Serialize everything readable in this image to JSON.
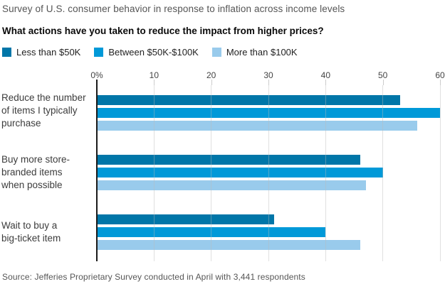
{
  "header": {
    "kicker": "Survey of U.S. consumer behavior in response to inflation across income levels",
    "title": "What actions have you taken to reduce the impact from higher prices?"
  },
  "footer": {
    "source": "Source: Jefferies Proprietary Survey conducted in April with 3,441 respondents"
  },
  "chart_data": {
    "type": "bar",
    "orientation": "horizontal",
    "title": "What actions have you taken to reduce the impact from higher prices?",
    "legend_position": "top",
    "grid": "vertical",
    "categories": [
      "Reduce the number of items I typically purchase",
      "Buy more store-branded items when possible",
      "Wait to buy a big-ticket item"
    ],
    "category_label_lines": [
      [
        "Reduce the number",
        "of items I typically",
        "purchase"
      ],
      [
        "Buy more store-",
        "branded items",
        "when possible"
      ],
      [
        "Wait to buy a",
        "big-ticket item"
      ]
    ],
    "series": [
      {
        "name": "Less than $50K",
        "color": "#0076a8",
        "values": [
          53,
          46,
          31
        ]
      },
      {
        "name": "Between $50K-$100K",
        "color": "#0099d8",
        "values": [
          60,
          50,
          40
        ]
      },
      {
        "name": "More than $100K",
        "color": "#99cbec",
        "values": [
          56,
          47,
          46
        ]
      }
    ],
    "x_axis": {
      "unit": "percent",
      "tick_labels": [
        "0%",
        "10",
        "20",
        "30",
        "40",
        "50",
        "60"
      ],
      "tick_values": [
        0,
        10,
        20,
        30,
        40,
        50,
        60
      ],
      "min": 0,
      "max": 60
    },
    "styles": {
      "axis_color": "#1a1a1a",
      "gridline_color": "#e2e2e2",
      "kicker_color": "#555555",
      "tick_label_color": "#444444",
      "category_label_color": "#3c3c3c"
    }
  }
}
